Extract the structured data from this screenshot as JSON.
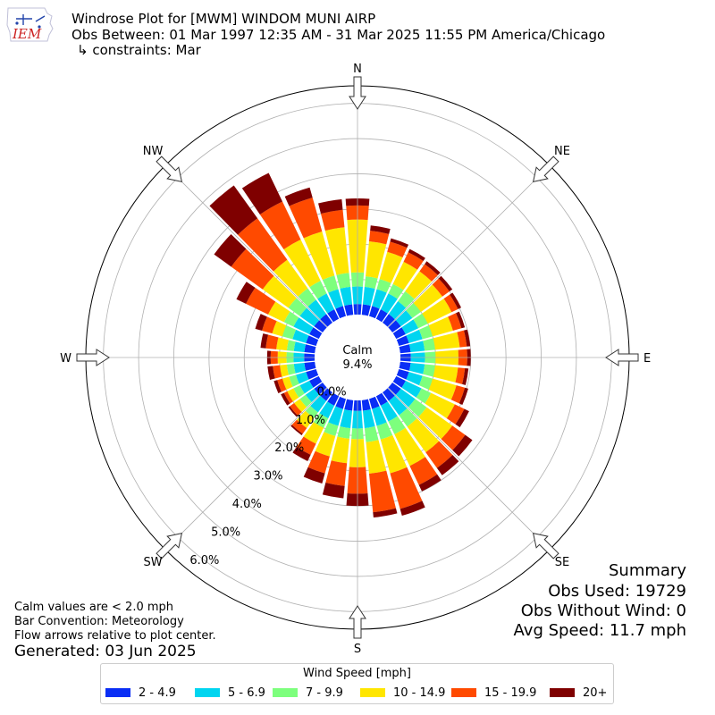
{
  "header": {
    "logo_text": "IEM",
    "title_line1": "Windrose Plot for [MWM] WINDOM MUNI AIRP",
    "title_line2": "Obs Between: 01 Mar 1997 12:35 AM - 31 Mar 2025 11:55 PM America/Chicago",
    "title_line3": "↳ constraints: Mar"
  },
  "summary": {
    "heading": "Summary",
    "obs_used": "Obs Used: 19729",
    "obs_without_wind": "Obs Without Wind: 0",
    "avg_speed": "Avg Speed: 11.7 mph"
  },
  "notes": {
    "calm_note": "Calm values are < 2.0 mph",
    "bar_convention": "Bar Convention: Meteorology",
    "flow_arrows": "Flow arrows relative to plot center.",
    "generated": "Generated: 03 Jun 2025"
  },
  "chart_data": {
    "type": "windrose",
    "calm_label": "Calm",
    "calm_percent": "9.4%",
    "radial_ticks": [
      "0.0%",
      "1.0%",
      "2.0%",
      "3.0%",
      "4.0%",
      "5.0%",
      "6.0%"
    ],
    "radial_tick_values": [
      0,
      1,
      2,
      3,
      4,
      5,
      6
    ],
    "rmax": 6.5,
    "compass_labels": [
      "N",
      "NE",
      "E",
      "SE",
      "S",
      "SW",
      "W",
      "NW"
    ],
    "legend_title": "Wind Speed [mph]",
    "speed_bins": [
      {
        "label": "2 - 4.9",
        "color": "#0a2ef5"
      },
      {
        "label": "5 - 6.9",
        "color": "#00d5f0"
      },
      {
        "label": "7 - 9.9",
        "color": "#7dff7d"
      },
      {
        "label": "10 - 14.9",
        "color": "#ffe600"
      },
      {
        "label": "15 - 19.9",
        "color": "#ff4a00"
      },
      {
        "label": "20+",
        "color": "#7f0000"
      }
    ],
    "direction_degrees": [
      0,
      10,
      20,
      30,
      40,
      50,
      60,
      70,
      80,
      90,
      100,
      110,
      120,
      130,
      140,
      150,
      160,
      170,
      180,
      190,
      200,
      210,
      220,
      230,
      240,
      250,
      260,
      270,
      280,
      290,
      300,
      310,
      320,
      330,
      340,
      350
    ],
    "cumulative_percent": [
      [
        0.3,
        0.8,
        1.2,
        2.7,
        3.1,
        3.3
      ],
      [
        0.3,
        0.8,
        1.1,
        2.1,
        2.4,
        2.55
      ],
      [
        0.3,
        0.8,
        1.1,
        1.9,
        2.2,
        2.3
      ],
      [
        0.3,
        0.8,
        1.1,
        1.8,
        2.1,
        2.2
      ],
      [
        0.3,
        0.75,
        1.1,
        1.8,
        2.05,
        2.15
      ],
      [
        0.3,
        0.7,
        1.0,
        1.75,
        2.0,
        2.1
      ],
      [
        0.3,
        0.7,
        1.0,
        1.75,
        1.95,
        2.05
      ],
      [
        0.3,
        0.7,
        1.0,
        1.6,
        1.85,
        1.95
      ],
      [
        0.3,
        0.7,
        1.0,
        1.7,
        1.9,
        2.0
      ],
      [
        0.3,
        0.7,
        1.0,
        1.65,
        1.9,
        2.0
      ],
      [
        0.3,
        0.7,
        1.0,
        1.65,
        1.85,
        1.95
      ],
      [
        0.3,
        0.7,
        1.0,
        1.7,
        1.95,
        2.05
      ],
      [
        0.3,
        0.8,
        1.1,
        1.85,
        2.15,
        2.3
      ],
      [
        0.3,
        0.8,
        1.2,
        2.1,
        2.55,
        2.8
      ],
      [
        0.3,
        0.8,
        1.2,
        2.1,
        2.65,
        2.9
      ],
      [
        0.3,
        0.8,
        1.2,
        2.2,
        2.8,
        3.0
      ],
      [
        0.3,
        0.8,
        1.2,
        2.2,
        3.25,
        3.45
      ],
      [
        0.3,
        0.8,
        1.2,
        2.1,
        3.2,
        3.35
      ],
      [
        0.3,
        0.8,
        1.1,
        1.9,
        2.65,
        3.0
      ],
      [
        0.3,
        0.8,
        1.1,
        1.8,
        2.45,
        2.8
      ],
      [
        0.3,
        0.8,
        1.1,
        1.7,
        2.2,
        2.5
      ],
      [
        0.3,
        0.7,
        1.0,
        1.5,
        1.85,
        2.05
      ],
      [
        0.3,
        0.7,
        0.9,
        1.25,
        1.45,
        1.5
      ],
      [
        0.3,
        0.6,
        0.8,
        1.0,
        1.15,
        1.2
      ],
      [
        0.3,
        0.6,
        0.8,
        1.0,
        1.1,
        1.2
      ],
      [
        0.3,
        0.6,
        0.8,
        1.0,
        1.15,
        1.25
      ],
      [
        0.3,
        0.6,
        0.8,
        1.0,
        1.2,
        1.35
      ],
      [
        0.3,
        0.6,
        0.8,
        1.05,
        1.25,
        1.35
      ],
      [
        0.3,
        0.6,
        0.8,
        1.1,
        1.4,
        1.55
      ],
      [
        0.3,
        0.7,
        1.0,
        1.3,
        1.6,
        1.8
      ],
      [
        0.3,
        0.8,
        1.1,
        1.6,
        2.3,
        2.6
      ],
      [
        0.3,
        0.8,
        1.2,
        2.1,
        3.2,
        3.8
      ],
      [
        0.3,
        0.8,
        1.2,
        2.2,
        3.65,
        4.8
      ],
      [
        0.3,
        0.8,
        1.2,
        2.5,
        3.7,
        4.6
      ],
      [
        0.3,
        0.8,
        1.2,
        2.5,
        3.5,
        3.8
      ],
      [
        0.3,
        0.8,
        1.2,
        2.5,
        3.0,
        3.3
      ]
    ]
  }
}
